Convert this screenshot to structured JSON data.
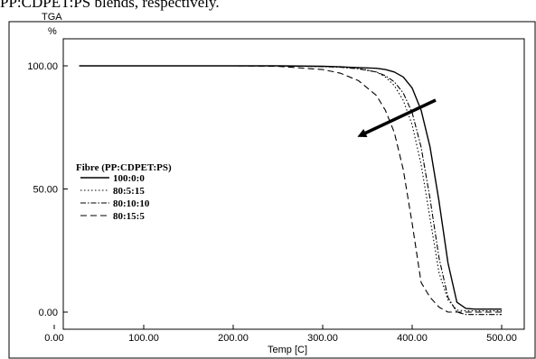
{
  "caption": "PP:CDPET:PS blends, respectively.",
  "chart_data": {
    "type": "line",
    "ylabel_top": "TGA",
    "ylabel_unit": "%",
    "xlabel": "Temp  [C]",
    "xlim": [
      0,
      520
    ],
    "ylim": [
      -5,
      110
    ],
    "x_ticks": [
      "0.00",
      "100.00",
      "200.00",
      "300.00",
      "400.00",
      "500.00"
    ],
    "x_tick_values": [
      0,
      100,
      200,
      300,
      400,
      500
    ],
    "y_ticks": [
      "0.00",
      "50.00",
      "100.00"
    ],
    "y_tick_values": [
      0,
      50,
      100
    ],
    "legend_title": "Fibre (PP:CDPET:PS)",
    "legend_position": "left",
    "x": [
      28,
      100,
      200,
      250,
      300,
      320,
      340,
      360,
      370,
      380,
      390,
      400,
      410,
      420,
      430,
      440,
      450,
      460,
      470,
      480,
      490,
      500
    ],
    "series": [
      {
        "name": "100:0:0",
        "dash": "solid",
        "color": "#000000",
        "values": [
          100,
          100,
          100,
          100,
          99.8,
          99.6,
          99.3,
          99,
          98.5,
          97.5,
          95.5,
          91,
          82,
          67,
          45,
          20,
          4,
          1.5,
          1.2,
          1.2,
          1.2,
          1.2
        ]
      },
      {
        "name": "80:5:15",
        "dash": "dotted",
        "color": "#000000",
        "values": [
          100,
          100,
          100,
          100,
          99.7,
          99.5,
          99,
          97.5,
          95.5,
          92,
          86,
          76,
          60,
          38,
          16,
          5,
          0.8,
          0.5,
          0.5,
          0.5,
          0.5,
          0.5
        ]
      },
      {
        "name": "80:10:10",
        "dash": "dashdot",
        "color": "#000000",
        "values": [
          100,
          100,
          100,
          100,
          99.7,
          99.4,
          98.8,
          97.5,
          96,
          93.5,
          89,
          81,
          67,
          46,
          22,
          6,
          0,
          -1,
          -1,
          -1,
          -1,
          -1
        ]
      },
      {
        "name": "80:15:5",
        "dash": "dashed",
        "color": "#000000",
        "values": [
          100,
          100,
          100,
          99.8,
          98.5,
          97,
          94,
          88,
          82,
          73,
          58,
          36,
          12,
          6,
          2,
          0,
          0,
          0,
          0,
          0,
          0,
          0
        ]
      }
    ],
    "annotation": "arrow pointing down-left across curves",
    "grid": false
  }
}
